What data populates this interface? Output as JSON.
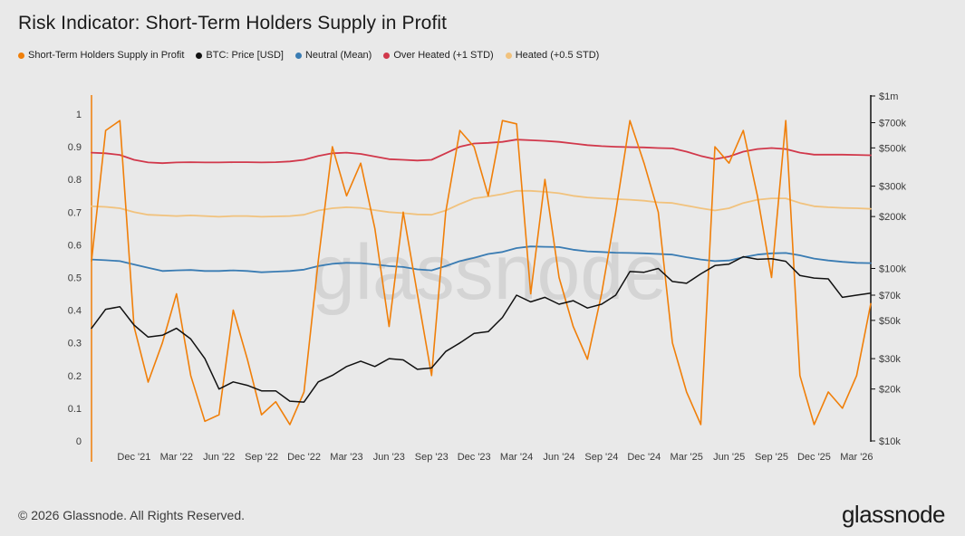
{
  "title": "Risk Indicator: Short-Term Holders Supply in Profit",
  "footer": "© 2026 Glassnode. All Rights Reserved.",
  "brand": "glassnode",
  "watermark": "glassnode",
  "colors": {
    "sth": "#f07f09",
    "btc": "#111111",
    "neutral": "#3a7cb3",
    "overheated": "#d1384b",
    "heated": "#f1c27d"
  },
  "chart_data": {
    "type": "line",
    "title": "Risk Indicator: Short-Term Holders Supply in Profit",
    "legend_placement": "top-left",
    "grid": false,
    "x_ticks": [
      "Dec '21",
      "Mar '22",
      "Jun '22",
      "Sep '22",
      "Dec '22",
      "Mar '23",
      "Jun '23",
      "Sep '23",
      "Dec '23",
      "Mar '24",
      "Jun '24",
      "Sep '24",
      "Dec '24",
      "Mar '25",
      "Jun '25",
      "Sep '25",
      "Dec '25",
      "Mar '26"
    ],
    "x_range": [
      "2021-09",
      "2026-04"
    ],
    "y_left": {
      "ticks": [
        "0",
        "0.1",
        "0.2",
        "0.3",
        "0.4",
        "0.5",
        "0.6",
        "0.7",
        "0.8",
        "0.9",
        "1"
      ],
      "range": [
        0,
        1
      ]
    },
    "y_right": {
      "scale": "log",
      "ticks": [
        "$10k",
        "$20k",
        "$30k",
        "$50k",
        "$70k",
        "$100k",
        "$200k",
        "$300k",
        "$500k",
        "$700k",
        "$1m"
      ],
      "range": [
        10000,
        1000000
      ]
    },
    "x": [
      "2021-09",
      "2021-10",
      "2021-11",
      "2021-12",
      "2022-01",
      "2022-02",
      "2022-03",
      "2022-04",
      "2022-05",
      "2022-06",
      "2022-07",
      "2022-08",
      "2022-09",
      "2022-10",
      "2022-11",
      "2022-12",
      "2023-01",
      "2023-02",
      "2023-03",
      "2023-04",
      "2023-05",
      "2023-06",
      "2023-07",
      "2023-08",
      "2023-09",
      "2023-10",
      "2023-11",
      "2023-12",
      "2024-01",
      "2024-02",
      "2024-03",
      "2024-04",
      "2024-05",
      "2024-06",
      "2024-07",
      "2024-08",
      "2024-09",
      "2024-10",
      "2024-11",
      "2024-12",
      "2025-01",
      "2025-02",
      "2025-03",
      "2025-04",
      "2025-05",
      "2025-06",
      "2025-07",
      "2025-08",
      "2025-09",
      "2025-10",
      "2025-11",
      "2025-12",
      "2026-01",
      "2026-02",
      "2026-03",
      "2026-04"
    ],
    "series": [
      {
        "name": "Short-Term Holders Supply in Profit",
        "key": "sth",
        "axis": "left",
        "values": [
          0.55,
          0.95,
          0.98,
          0.35,
          0.18,
          0.3,
          0.45,
          0.2,
          0.06,
          0.08,
          0.4,
          0.25,
          0.08,
          0.12,
          0.05,
          0.15,
          0.55,
          0.9,
          0.75,
          0.85,
          0.65,
          0.35,
          0.7,
          0.45,
          0.2,
          0.7,
          0.95,
          0.9,
          0.75,
          0.98,
          0.97,
          0.45,
          0.8,
          0.5,
          0.35,
          0.25,
          0.45,
          0.7,
          0.98,
          0.85,
          0.7,
          0.3,
          0.15,
          0.05,
          0.9,
          0.85,
          0.95,
          0.75,
          0.5,
          0.98,
          0.2,
          0.05,
          0.15,
          0.1,
          0.2,
          0.42
        ]
      },
      {
        "name": "BTC: Price [USD]",
        "key": "btc",
        "axis": "right",
        "values": [
          45000,
          58000,
          60000,
          47000,
          40000,
          41000,
          45000,
          39000,
          30000,
          20000,
          22000,
          21000,
          19500,
          19500,
          17000,
          16800,
          22000,
          24000,
          27000,
          29000,
          27000,
          30000,
          29500,
          26000,
          26500,
          33000,
          37000,
          42000,
          43000,
          52000,
          70000,
          64000,
          68000,
          62000,
          65000,
          59000,
          62000,
          70000,
          96000,
          95000,
          100000,
          84000,
          82000,
          93000,
          104000,
          106000,
          117000,
          113000,
          114000,
          110000,
          91000,
          88000,
          87000,
          68000,
          70000,
          72000
        ]
      },
      {
        "name": "Neutral (Mean)",
        "key": "neutral",
        "axis": "left",
        "values": [
          0.555,
          0.553,
          0.55,
          0.54,
          0.53,
          0.52,
          0.522,
          0.523,
          0.52,
          0.52,
          0.522,
          0.52,
          0.516,
          0.518,
          0.52,
          0.524,
          0.535,
          0.542,
          0.545,
          0.544,
          0.54,
          0.535,
          0.532,
          0.525,
          0.522,
          0.535,
          0.55,
          0.56,
          0.572,
          0.578,
          0.59,
          0.595,
          0.594,
          0.593,
          0.585,
          0.58,
          0.578,
          0.576,
          0.575,
          0.574,
          0.572,
          0.57,
          0.562,
          0.555,
          0.55,
          0.552,
          0.562,
          0.57,
          0.574,
          0.575,
          0.568,
          0.558,
          0.552,
          0.548,
          0.545,
          0.544
        ]
      },
      {
        "name": "Over Heated (+1 STD)",
        "key": "overheated",
        "axis": "left",
        "values": [
          0.882,
          0.88,
          0.875,
          0.86,
          0.852,
          0.85,
          0.852,
          0.853,
          0.852,
          0.852,
          0.853,
          0.853,
          0.852,
          0.853,
          0.855,
          0.86,
          0.872,
          0.88,
          0.882,
          0.878,
          0.87,
          0.862,
          0.86,
          0.858,
          0.86,
          0.88,
          0.9,
          0.91,
          0.912,
          0.915,
          0.922,
          0.92,
          0.918,
          0.915,
          0.91,
          0.905,
          0.902,
          0.9,
          0.899,
          0.898,
          0.896,
          0.895,
          0.885,
          0.872,
          0.862,
          0.87,
          0.885,
          0.893,
          0.896,
          0.893,
          0.882,
          0.876,
          0.876,
          0.876,
          0.875,
          0.874
        ]
      },
      {
        "name": "Heated (+0.5 STD)",
        "key": "heated",
        "axis": "left",
        "values": [
          0.718,
          0.716,
          0.712,
          0.7,
          0.692,
          0.69,
          0.688,
          0.69,
          0.688,
          0.686,
          0.688,
          0.688,
          0.686,
          0.687,
          0.688,
          0.692,
          0.705,
          0.712,
          0.715,
          0.713,
          0.706,
          0.7,
          0.697,
          0.693,
          0.692,
          0.705,
          0.725,
          0.742,
          0.748,
          0.755,
          0.765,
          0.765,
          0.762,
          0.758,
          0.75,
          0.745,
          0.742,
          0.74,
          0.738,
          0.735,
          0.73,
          0.728,
          0.72,
          0.712,
          0.705,
          0.712,
          0.728,
          0.738,
          0.742,
          0.742,
          0.728,
          0.718,
          0.715,
          0.713,
          0.712,
          0.71
        ]
      }
    ]
  }
}
